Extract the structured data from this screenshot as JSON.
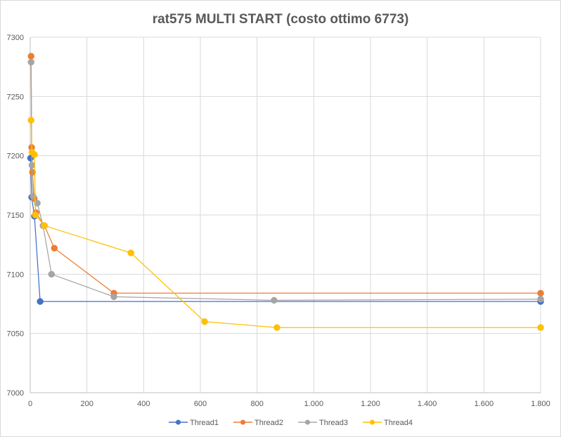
{
  "chart_data": {
    "type": "line",
    "title": "rat575 MULTI START (costo ottimo 6773)",
    "xlabel": "",
    "ylabel": "",
    "xlim": [
      0,
      1800
    ],
    "ylim": [
      7000,
      7300
    ],
    "x_ticks": [
      0,
      200,
      400,
      600,
      800,
      1000,
      1200,
      1400,
      1600,
      1800
    ],
    "x_tick_labels": [
      "0",
      "200",
      "400",
      "600",
      "800",
      "1.000",
      "1.200",
      "1.400",
      "1.600",
      "1.800"
    ],
    "y_ticks": [
      7000,
      7050,
      7100,
      7150,
      7200,
      7250,
      7300
    ],
    "y_tick_labels": [
      "7000",
      "7050",
      "7100",
      "7150",
      "7200",
      "7250",
      "7300"
    ],
    "grid": true,
    "legend_position": "bottom",
    "series": [
      {
        "name": "Thread1",
        "color": "#4472C4",
        "points": [
          [
            1,
            7198
          ],
          [
            5,
            7165
          ],
          [
            15,
            7149
          ],
          [
            35,
            7077
          ],
          [
            1800,
            7077
          ]
        ]
      },
      {
        "name": "Thread2",
        "color": "#ED7D31",
        "points": [
          [
            3,
            7284
          ],
          [
            5,
            7207
          ],
          [
            8,
            7186
          ],
          [
            14,
            7164
          ],
          [
            20,
            7152
          ],
          [
            50,
            7141
          ],
          [
            85,
            7122
          ],
          [
            295,
            7084
          ],
          [
            1800,
            7084
          ]
        ]
      },
      {
        "name": "Thread3",
        "color": "#A5A5A5",
        "points": [
          [
            3,
            7279
          ],
          [
            6,
            7192
          ],
          [
            10,
            7166
          ],
          [
            25,
            7160
          ],
          [
            45,
            7141
          ],
          [
            75,
            7100
          ],
          [
            295,
            7081
          ],
          [
            860,
            7078
          ],
          [
            1800,
            7079
          ]
        ]
      },
      {
        "name": "Thread4",
        "color": "#FFC000",
        "points": [
          [
            3,
            7230
          ],
          [
            6,
            7203
          ],
          [
            15,
            7201
          ],
          [
            18,
            7150
          ],
          [
            50,
            7141
          ],
          [
            355,
            7118
          ],
          [
            615,
            7060
          ],
          [
            870,
            7055
          ],
          [
            1800,
            7055
          ]
        ]
      }
    ]
  }
}
